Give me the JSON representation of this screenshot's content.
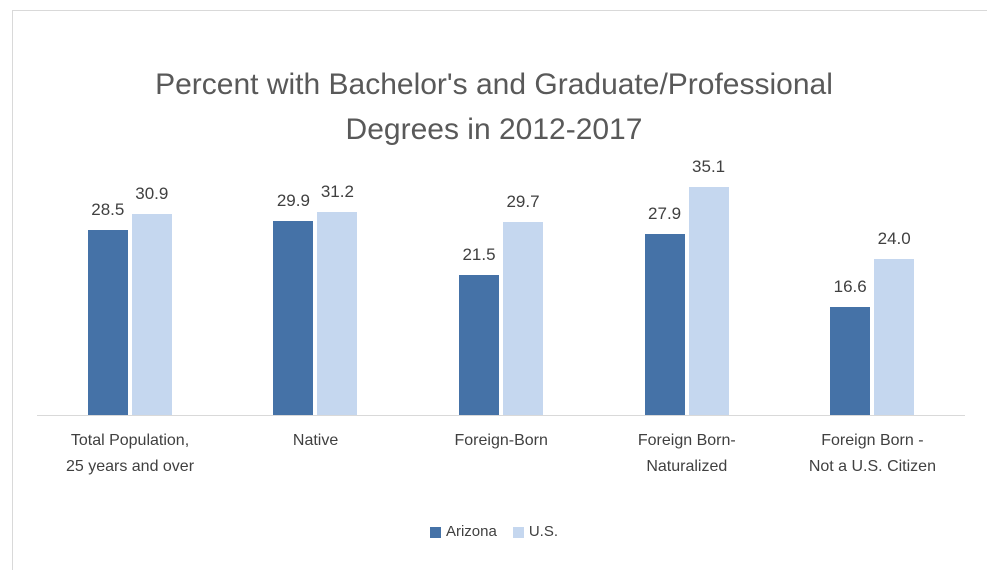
{
  "chart_data": {
    "type": "bar",
    "title": "Percent with Bachelor's and Graduate/Professional Degrees in 2012-2017",
    "categories": [
      [
        "Total Population,",
        "25 years and over"
      ],
      [
        "Native"
      ],
      [
        "Foreign-Born"
      ],
      [
        "Foreign Born-",
        "Naturalized"
      ],
      [
        "Foreign Born -",
        "Not a U.S. Citizen"
      ]
    ],
    "series": [
      {
        "name": "Arizona",
        "color": "#4572a7",
        "values": [
          28.5,
          29.9,
          21.5,
          27.9,
          16.6
        ],
        "value_labels": [
          "28.5",
          "29.9",
          "21.5",
          "27.9",
          "16.6"
        ]
      },
      {
        "name": "U.S.",
        "color": "#c5d7ef",
        "values": [
          30.9,
          31.2,
          29.7,
          35.1,
          24.0
        ],
        "value_labels": [
          "30.9",
          "31.2",
          "29.7",
          "35.1",
          "24.0"
        ]
      }
    ],
    "legend": "bottom"
  }
}
